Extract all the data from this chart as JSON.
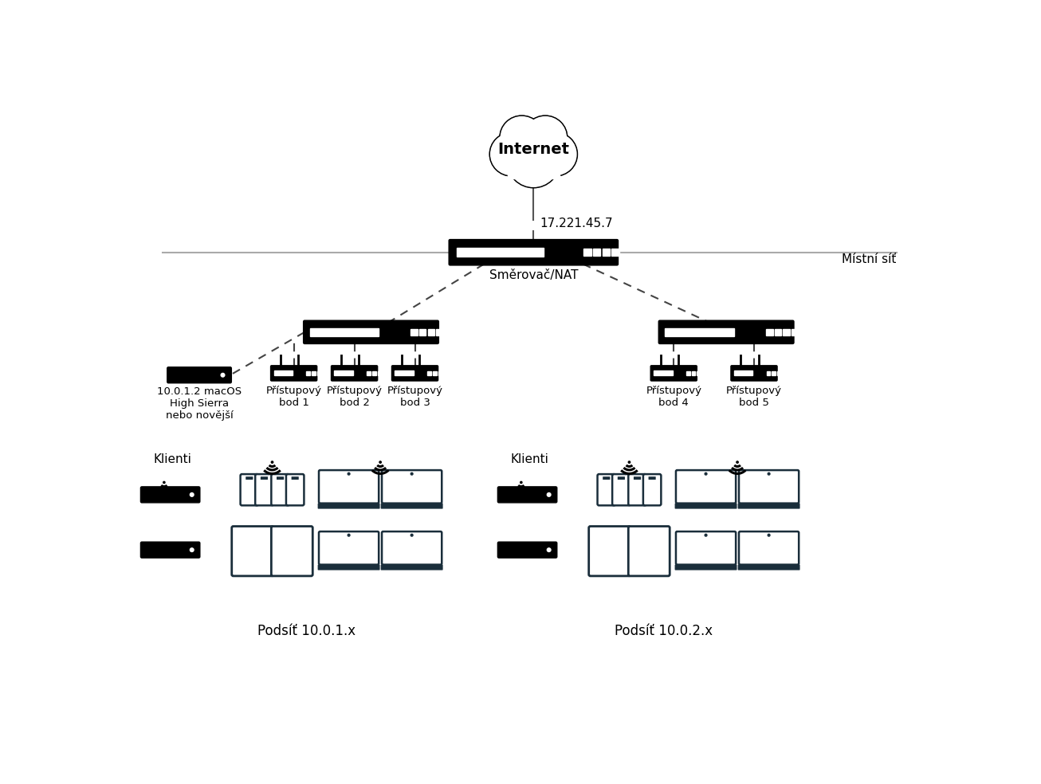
{
  "bg_color": "#ffffff",
  "cloud_text": "Internet",
  "ip_text": "17.221.45.7",
  "router_label": "Směrovač/NAT",
  "local_net_label": "Místní síť",
  "macos_label": "10.0.1.2 macOS\nHigh Sierra\nnebo novější",
  "ap_labels": [
    "Přístupový\nbod 1",
    "Přístupový\nbod 2",
    "Přístupový\nbod 3",
    "Přístupový\nbod 4",
    "Přístupový\nbod 5"
  ],
  "clients_label": "Klienti",
  "subnet1_label": "Podsíť 10.0.1.x",
  "subnet2_label": "Podsíť 10.0.2.x",
  "black": "#000000",
  "dark_navy": "#1a2e3b",
  "gray_line": "#aaaaaa",
  "dash_color": "#444444"
}
